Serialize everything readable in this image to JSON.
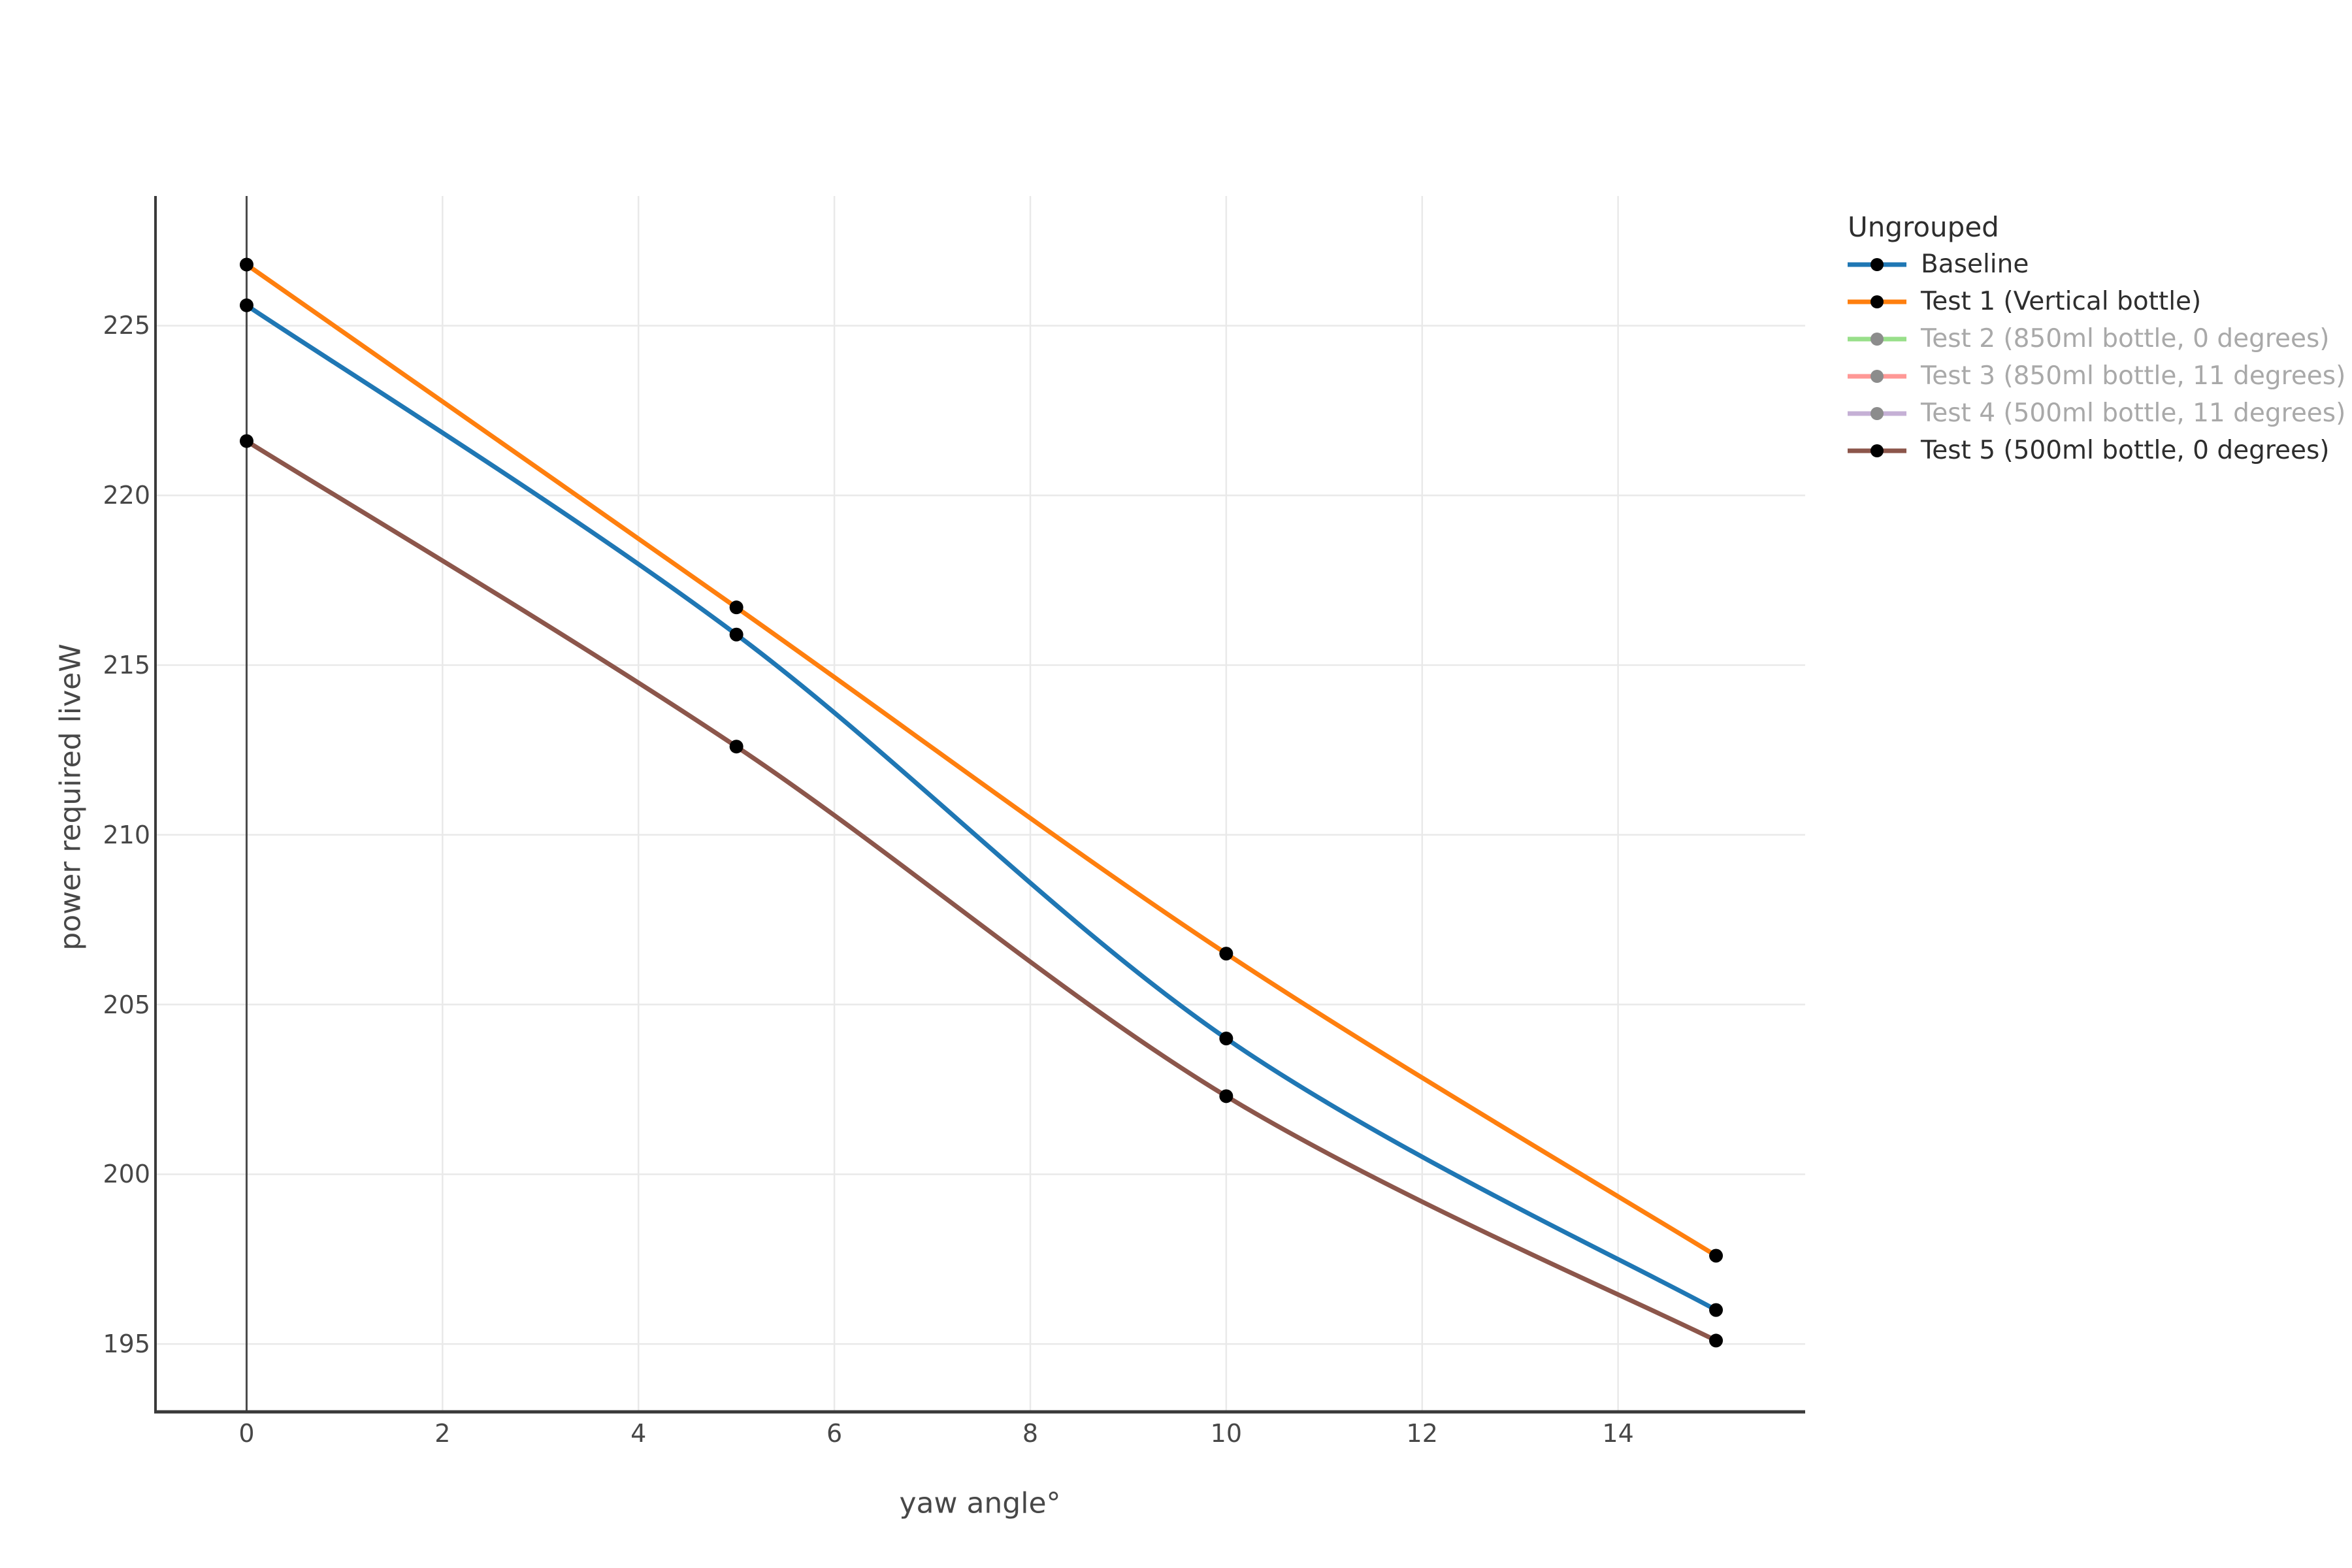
{
  "chart_data": {
    "type": "line",
    "title": "",
    "xlabel": "yaw angle°",
    "ylabel": "power required liveW",
    "x": [
      0,
      5,
      10,
      15
    ],
    "x_ticks": [
      0,
      2,
      4,
      6,
      8,
      10,
      12,
      14
    ],
    "y_ticks": [
      195,
      200,
      205,
      210,
      215,
      220,
      225
    ],
    "xlim": [
      -0.93,
      15.91
    ],
    "ylim": [
      193.0,
      228.82
    ],
    "grid": true,
    "zero_line_x": 0,
    "legend_position": "right",
    "legend_title": "Ungrouped",
    "marker_color": "#000000",
    "series": [
      {
        "name": "Baseline",
        "color": "#1f77b4",
        "visible": true,
        "values": [
          225.6,
          215.9,
          204.0,
          196.0
        ],
        "marker_color": "#000000",
        "label_color": "#2e2e2e"
      },
      {
        "name": "Test 1 (Vertical bottle)",
        "color": "#ff7f0e",
        "visible": true,
        "values": [
          226.8,
          216.7,
          206.5,
          197.6
        ],
        "marker_color": "#000000",
        "label_color": "#2e2e2e"
      },
      {
        "name": "Test 2 (850ml bottle, 0 degrees)",
        "color": "#98df8a",
        "visible": false,
        "values": null,
        "marker_color": "#8c8c8c",
        "label_color": "#a9a9a9"
      },
      {
        "name": "Test 3 (850ml bottle, 11 degrees)",
        "color": "#ff9896",
        "visible": false,
        "values": null,
        "marker_color": "#8c8c8c",
        "label_color": "#a9a9a9"
      },
      {
        "name": "Test 4 (500ml bottle, 11 degrees)",
        "color": "#c5b0d5",
        "visible": false,
        "values": null,
        "marker_color": "#8c8c8c",
        "label_color": "#a9a9a9"
      },
      {
        "name": "Test 5 (500ml bottle, 0 degrees)",
        "color": "#8c564b",
        "visible": true,
        "values": [
          221.6,
          212.6,
          202.3,
          195.1
        ],
        "marker_color": "#000000",
        "label_color": "#2e2e2e"
      }
    ],
    "axis_style": {
      "tick_color": "#474747",
      "title_color": "#474747",
      "spine_color": "#3a3a3a",
      "zero_line_color": "#4a4a4a",
      "grid_color": "#e9e9e9",
      "background": "#ffffff"
    }
  }
}
